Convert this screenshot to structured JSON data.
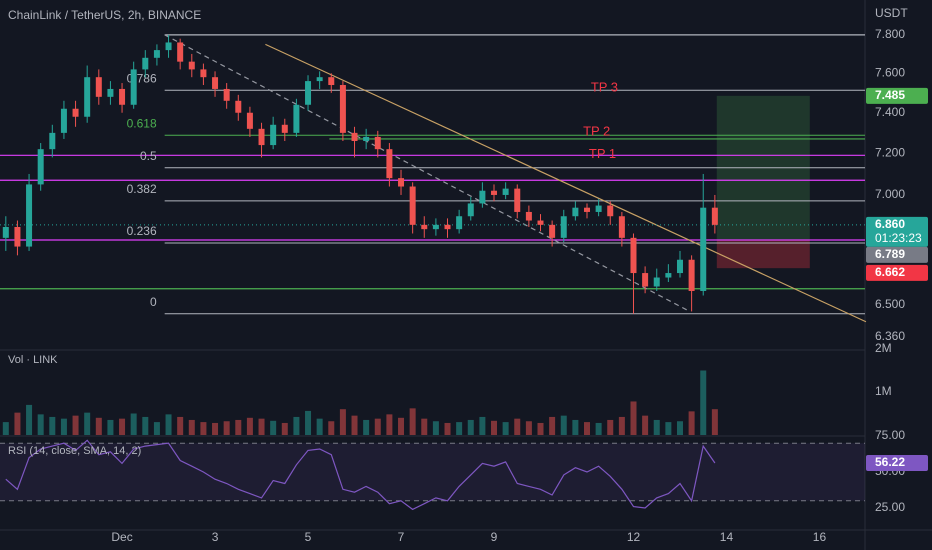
{
  "chart_data": {
    "type": "candlestick",
    "title": "ChainLink / TetherUS, 2h, BINANCE",
    "currency": "USDT",
    "log_scale": true,
    "xlim": [
      -63,
      383.5
    ],
    "xticks": [
      {
        "value": 0,
        "label": "Dec"
      },
      {
        "value": 48,
        "label": "3"
      },
      {
        "value": 96,
        "label": "5"
      },
      {
        "value": 144,
        "label": "7"
      },
      {
        "value": 192,
        "label": "9"
      },
      {
        "value": 264,
        "label": "12"
      },
      {
        "value": 312,
        "label": "14"
      },
      {
        "value": 360,
        "label": "16"
      }
    ],
    "ylim": [
      6.312,
      7.986
    ],
    "yticks": [
      {
        "value": 7.8,
        "label": "7.800"
      },
      {
        "value": 7.6,
        "label": "7.600"
      },
      {
        "value": 7.4,
        "label": "7.400"
      },
      {
        "value": 7.2,
        "label": "7.200"
      },
      {
        "value": 7.0,
        "label": "7.000"
      },
      {
        "value": 6.5,
        "label": "6.500"
      },
      {
        "value": 6.36,
        "label": "6.360"
      }
    ],
    "up_color": "#26a69a",
    "down_color": "#ef5350",
    "x": [
      -60,
      -54,
      -48,
      -42,
      -36,
      -30,
      -24,
      -18,
      -12,
      -6,
      0,
      6,
      12,
      18,
      24,
      30,
      36,
      42,
      48,
      54,
      60,
      66,
      72,
      78,
      84,
      90,
      96,
      102,
      108,
      114,
      120,
      126,
      132,
      138,
      144,
      150,
      156,
      162,
      168,
      174,
      180,
      186,
      192,
      198,
      204,
      210,
      216,
      222,
      228,
      234,
      240,
      246,
      252,
      258,
      264,
      270,
      276,
      282,
      288,
      294,
      300,
      306
    ],
    "open": [
      6.8,
      6.85,
      6.76,
      7.05,
      7.22,
      7.3,
      7.42,
      7.38,
      7.58,
      7.48,
      7.52,
      7.44,
      7.62,
      7.68,
      7.72,
      7.76,
      7.66,
      7.62,
      7.58,
      7.52,
      7.46,
      7.4,
      7.32,
      7.24,
      7.34,
      7.3,
      7.44,
      7.56,
      7.58,
      7.54,
      7.3,
      7.26,
      7.28,
      7.22,
      7.08,
      7.04,
      6.86,
      6.84,
      6.86,
      6.84,
      6.9,
      6.96,
      7.02,
      7.0,
      7.03,
      6.92,
      6.88,
      6.86,
      6.8,
      6.9,
      6.94,
      6.92,
      6.95,
      6.9,
      6.8,
      6.64,
      6.58,
      6.62,
      6.64,
      6.7,
      6.56,
      6.94
    ],
    "high": [
      6.9,
      6.88,
      7.1,
      7.25,
      7.34,
      7.46,
      7.46,
      7.64,
      7.62,
      7.56,
      7.55,
      7.66,
      7.72,
      7.75,
      7.8,
      7.78,
      7.7,
      7.65,
      7.61,
      7.55,
      7.49,
      7.43,
      7.35,
      7.38,
      7.37,
      7.47,
      7.59,
      7.61,
      7.6,
      7.56,
      7.33,
      7.32,
      7.31,
      7.25,
      7.12,
      7.06,
      6.9,
      6.89,
      6.89,
      6.93,
      6.99,
      7.06,
      7.05,
      7.06,
      7.05,
      6.95,
      6.91,
      6.88,
      6.93,
      6.97,
      6.96,
      6.98,
      6.97,
      6.92,
      6.82,
      6.67,
      6.66,
      6.68,
      6.74,
      6.72,
      7.1,
      7.0
    ],
    "low": [
      6.74,
      6.72,
      6.74,
      7.02,
      7.18,
      7.27,
      7.33,
      7.35,
      7.44,
      7.44,
      7.4,
      7.42,
      7.58,
      7.64,
      7.68,
      7.62,
      7.58,
      7.54,
      7.48,
      7.42,
      7.36,
      7.28,
      7.18,
      7.22,
      7.26,
      7.28,
      7.41,
      7.52,
      7.5,
      7.26,
      7.18,
      7.22,
      7.18,
      7.04,
      7.0,
      6.82,
      6.8,
      6.81,
      6.8,
      6.82,
      6.88,
      6.94,
      6.97,
      6.98,
      6.89,
      6.85,
      6.83,
      6.76,
      6.78,
      6.88,
      6.89,
      6.9,
      6.86,
      6.76,
      6.46,
      6.55,
      6.56,
      6.6,
      6.62,
      6.47,
      6.54,
      6.82
    ],
    "close": [
      6.85,
      6.76,
      7.05,
      7.22,
      7.3,
      7.42,
      7.38,
      7.58,
      7.48,
      7.52,
      7.44,
      7.62,
      7.68,
      7.72,
      7.76,
      7.66,
      7.62,
      7.58,
      7.52,
      7.46,
      7.4,
      7.32,
      7.24,
      7.34,
      7.3,
      7.44,
      7.56,
      7.58,
      7.54,
      7.3,
      7.26,
      7.28,
      7.22,
      7.08,
      7.04,
      6.86,
      6.84,
      6.86,
      6.84,
      6.9,
      6.96,
      7.02,
      7.0,
      7.03,
      6.92,
      6.88,
      6.86,
      6.8,
      6.9,
      6.94,
      6.92,
      6.95,
      6.9,
      6.8,
      6.64,
      6.58,
      6.62,
      6.64,
      6.7,
      6.56,
      6.94,
      6.86
    ],
    "fib": {
      "high": 7.8,
      "low": 6.46,
      "from_x": 22,
      "color": "#b2b5be",
      "levels": [
        {
          "level": 0
        },
        {
          "level": 0.236
        },
        {
          "level": 0.382
        },
        {
          "level": 0.5
        },
        {
          "level": 0.618,
          "color": "#4caf50"
        },
        {
          "level": 0.786
        }
      ]
    },
    "levels": [
      {
        "value": 7.8,
        "color": "#b2b5be",
        "from_x": 22
      },
      {
        "value": 7.27,
        "color": "#4caf50",
        "from_x": 107
      },
      {
        "value": 7.19,
        "color": "#e040fb"
      },
      {
        "value": 7.07,
        "color": "#e040fb"
      },
      {
        "value": 6.79,
        "color": "#e040fb"
      },
      {
        "value": 6.57,
        "color": "#4caf50"
      }
    ],
    "trendlines": [
      {
        "x": [
          22,
          293
        ],
        "y": [
          7.8,
          6.47
        ],
        "color": "#9598a1",
        "dash": true
      },
      {
        "x": [
          74,
          384
        ],
        "y": [
          7.75,
          6.425
        ],
        "color": "#c8a165"
      }
    ],
    "annotation_color": "#f23645",
    "annotations": [
      {
        "text": "TP 3",
        "x": 249,
        "y": 7.52
      },
      {
        "text": "TP 2",
        "x": 245,
        "y": 7.3
      },
      {
        "text": "TP 1",
        "x": 248,
        "y": 7.19
      }
    ],
    "position": {
      "x": [
        307,
        355
      ],
      "entry": 6.789,
      "target": 7.485,
      "stop": 6.662,
      "entry_color": "#787b86",
      "target_color": "#4caf50",
      "stop_color": "#f23645"
    },
    "current_price": {
      "value": 6.86,
      "label": "6.860",
      "countdown": "01:23:23",
      "color": "#26a69a"
    },
    "volume": {
      "title": "Vol · LINK",
      "ylim": [
        0,
        2000000
      ],
      "yticks": [
        {
          "value": 1000000,
          "label": "1M"
        },
        {
          "value": 2000000,
          "label": "2M"
        }
      ],
      "values": [
        300000,
        520000,
        700000,
        480000,
        420000,
        380000,
        450000,
        520000,
        400000,
        350000,
        380000,
        500000,
        420000,
        300000,
        480000,
        420000,
        350000,
        300000,
        280000,
        320000,
        350000,
        400000,
        380000,
        330000,
        280000,
        420000,
        560000,
        380000,
        320000,
        600000,
        450000,
        350000,
        380000,
        480000,
        400000,
        620000,
        380000,
        320000,
        280000,
        300000,
        350000,
        420000,
        330000,
        300000,
        380000,
        320000,
        280000,
        420000,
        450000,
        350000,
        300000,
        280000,
        350000,
        420000,
        780000,
        450000,
        350000,
        300000,
        320000,
        550000,
        1500000,
        600000
      ]
    },
    "rsi": {
      "title": "RSI (14, close, SMA, 14, 2)",
      "color": "#7e57c2",
      "ylim": [
        9.72,
        75
      ],
      "bands": [
        30,
        70
      ],
      "yticks": [
        {
          "value": 25,
          "label": "25.00"
        },
        {
          "value": 50,
          "label": "50.00"
        },
        {
          "value": 75,
          "label": "75.00"
        }
      ],
      "values": [
        45,
        38,
        60,
        66,
        68,
        70,
        65,
        72,
        62,
        64,
        56,
        66,
        68,
        69,
        70,
        58,
        54,
        50,
        45,
        42,
        38,
        35,
        32,
        44,
        42,
        55,
        65,
        66,
        62,
        38,
        36,
        40,
        36,
        28,
        30,
        24,
        28,
        32,
        30,
        40,
        48,
        56,
        54,
        57,
        42,
        40,
        38,
        34,
        48,
        53,
        50,
        54,
        47,
        38,
        26,
        25,
        32,
        35,
        42,
        30,
        68,
        56.22
      ]
    }
  }
}
